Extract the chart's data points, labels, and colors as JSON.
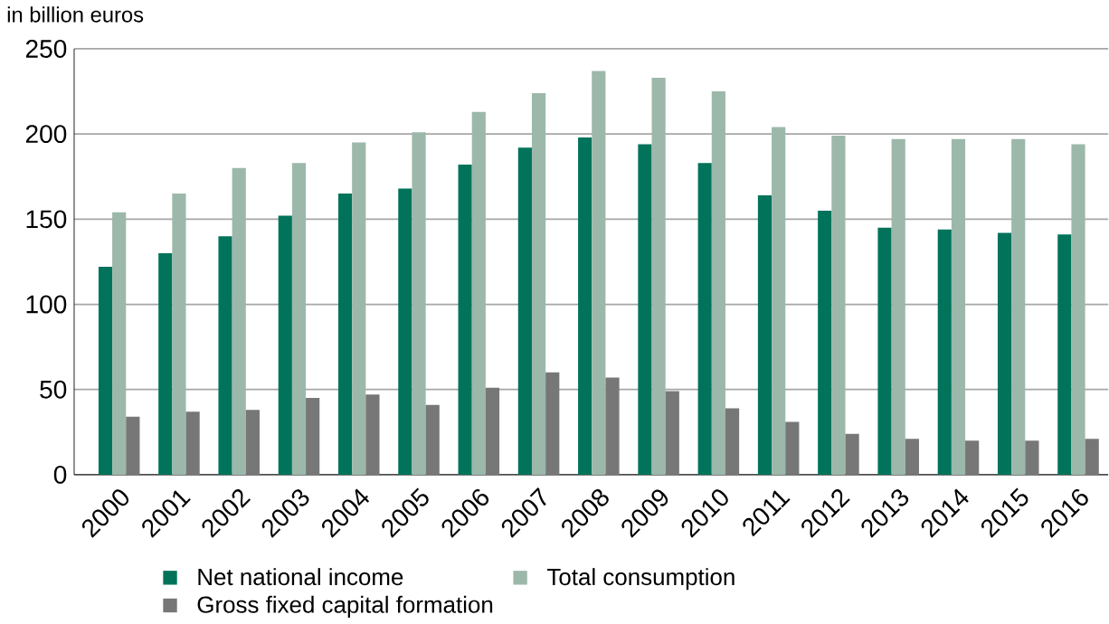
{
  "chart_data": {
    "type": "bar",
    "ylabel": "in billion euros",
    "categories": [
      "2000",
      "2001",
      "2002",
      "2003",
      "2004",
      "2005",
      "2006",
      "2007",
      "2008",
      "2009",
      "2010",
      "2011",
      "2012",
      "2013",
      "2014",
      "2015",
      "2016"
    ],
    "series": [
      {
        "name": "Net national income",
        "color": "#00735a",
        "values": [
          122,
          130,
          140,
          152,
          165,
          168,
          182,
          192,
          198,
          194,
          183,
          164,
          155,
          145,
          144,
          142,
          141
        ]
      },
      {
        "name": "Total consumption",
        "color": "#9cb8aa",
        "values": [
          154,
          165,
          180,
          183,
          195,
          201,
          213,
          224,
          237,
          233,
          225,
          204,
          199,
          197,
          197,
          197,
          194
        ]
      },
      {
        "name": "Gross fixed capital formation",
        "color": "#777777",
        "values": [
          34,
          37,
          38,
          45,
          47,
          41,
          51,
          60,
          57,
          49,
          39,
          31,
          24,
          21,
          20,
          20,
          21
        ]
      }
    ],
    "ylim": [
      0,
      250
    ],
    "yticks": [
      0,
      50,
      100,
      150,
      200,
      250
    ],
    "grid": "y",
    "legend": "bottom"
  }
}
